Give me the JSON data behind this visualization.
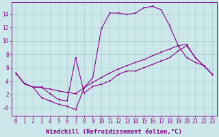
{
  "bg_color": "#cce8ea",
  "line_color": "#880088",
  "grid_color": "#aacccc",
  "xlabel": "Windchill (Refroidissement éolien,°C)",
  "xlabel_fontsize": 6.5,
  "tick_fontsize": 5.5,
  "ylim": [
    -1.2,
    15.8
  ],
  "xlim": [
    -0.5,
    23.5
  ],
  "yticks": [
    0,
    2,
    4,
    6,
    8,
    10,
    12,
    14
  ],
  "ytick_labels": [
    "-0",
    "2",
    "4",
    "6",
    "8",
    "10",
    "12",
    "14"
  ],
  "xticks": [
    0,
    1,
    2,
    3,
    4,
    5,
    6,
    7,
    8,
    9,
    10,
    11,
    12,
    13,
    14,
    15,
    16,
    17,
    18,
    19,
    20,
    21,
    22,
    23
  ],
  "curve_upper_x": [
    0,
    1,
    2,
    3,
    4,
    5,
    6,
    7,
    8,
    9,
    10,
    11,
    12,
    13,
    14,
    15,
    16,
    17,
    18,
    19,
    20,
    21,
    22,
    23
  ],
  "curve_upper_y": [
    5.2,
    3.6,
    3.1,
    1.5,
    1.0,
    0.5,
    0.2,
    -0.3,
    3.0,
    4.5,
    11.8,
    14.2,
    14.2,
    14.0,
    14.2,
    15.0,
    15.2,
    14.7,
    12.3,
    9.3,
    7.5,
    6.8,
    6.3,
    5.0
  ],
  "curve_lower_x": [
    0,
    1,
    2,
    3,
    4,
    5,
    6,
    7,
    8,
    9,
    10,
    11,
    12,
    13,
    14,
    15,
    16,
    17,
    18,
    19,
    20,
    21,
    22,
    23
  ],
  "curve_lower_y": [
    5.2,
    3.6,
    3.1,
    3.1,
    2.1,
    1.2,
    1.0,
    7.5,
    2.2,
    3.2,
    3.5,
    4.0,
    5.0,
    5.5,
    5.5,
    6.0,
    6.5,
    7.0,
    7.5,
    8.5,
    9.3,
    7.5,
    6.3,
    5.0
  ],
  "curve_diag_x": [
    0,
    1,
    2,
    3,
    4,
    5,
    6,
    7,
    8,
    9,
    10,
    11,
    12,
    13,
    14,
    15,
    16,
    17,
    18,
    19,
    20,
    21,
    22,
    23
  ],
  "curve_diag_y": [
    5.2,
    3.6,
    3.1,
    3.0,
    2.8,
    2.5,
    2.3,
    2.1,
    3.0,
    3.8,
    4.5,
    5.2,
    5.8,
    6.3,
    6.8,
    7.2,
    7.8,
    8.3,
    8.8,
    9.3,
    9.5,
    7.5,
    6.3,
    5.0
  ]
}
